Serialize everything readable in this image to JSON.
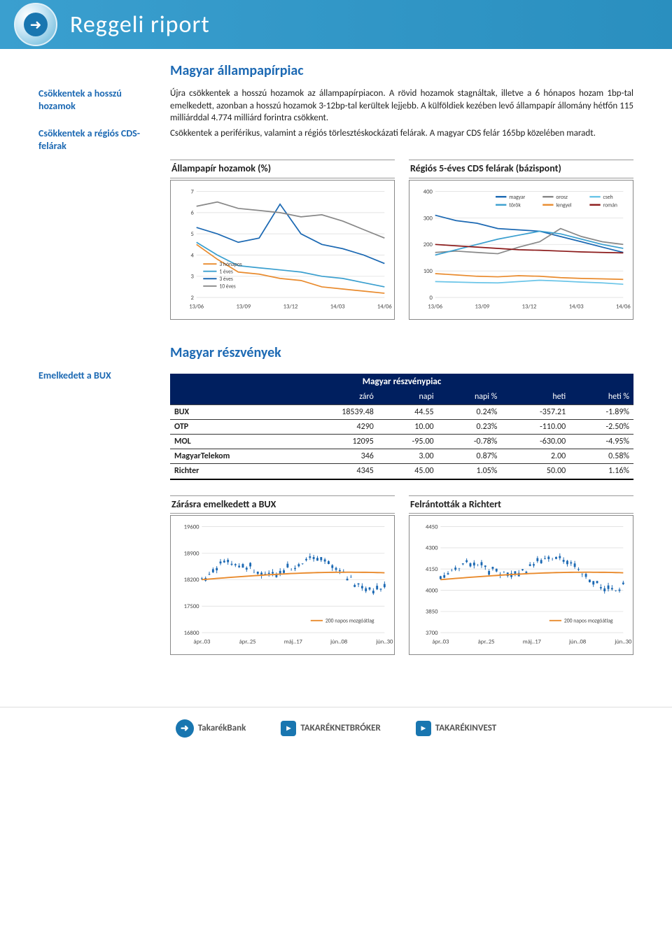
{
  "header": {
    "title": "Reggeli riport"
  },
  "section1": {
    "title": "Magyar állampapírpiac",
    "blocks": [
      {
        "label": "Csökkentek a hosszú hozamok",
        "text": "Újra csökkentek a hosszú hozamok az állampapírpiacon. A rövid hozamok stagnáltak, illetve a 6 hónapos hozam 1bp-tal emelkedett, azonban a hosszú hozamok 3-12bp-tal kerültek lejjebb. A külföldiek kezében levő állampapír állomány hétfőn 115 milliárddal 4.774 milliárd forintra csökkent."
      },
      {
        "label": "Csökkentek a régiós CDS-felárak",
        "text": "Csökkentek a periférikus, valamint a régiós törlesztéskockázati felárak. A magyar CDS felár 165bp közelében maradt."
      }
    ],
    "chart1": {
      "title": "Állampapír hozamok (%)",
      "ylim": [
        2,
        7
      ],
      "yticks": [
        2,
        3,
        4,
        5,
        6,
        7
      ],
      "xlabels": [
        "13/06",
        "13/09",
        "13/12",
        "14/03",
        "14/06"
      ],
      "series": [
        {
          "name": "3 hónapos",
          "color": "#e98b2e",
          "data": [
            4.5,
            3.8,
            3.2,
            3.1,
            2.9,
            2.8,
            2.5,
            2.4,
            2.3,
            2.2
          ]
        },
        {
          "name": "1 éves",
          "color": "#3a9fcf",
          "data": [
            4.6,
            4.0,
            3.5,
            3.4,
            3.3,
            3.2,
            3.0,
            2.9,
            2.7,
            2.5
          ]
        },
        {
          "name": "3 éves",
          "color": "#1c69b3",
          "data": [
            5.3,
            5.0,
            4.6,
            4.8,
            6.4,
            5.0,
            4.5,
            4.3,
            4.0,
            3.6
          ]
        },
        {
          "name": "10 éves",
          "color": "#888888",
          "data": [
            6.3,
            6.5,
            6.2,
            6.1,
            6.0,
            5.8,
            5.9,
            5.6,
            5.2,
            4.8
          ]
        }
      ],
      "grid_color": "#e4e4e4",
      "bg": "#ffffff",
      "axis_fontsize": 9
    },
    "chart2": {
      "title": "Régiós 5-éves CDS felárak (bázispont)",
      "ylim": [
        0,
        400
      ],
      "yticks": [
        0,
        100,
        200,
        300,
        400
      ],
      "xlabels": [
        "13/06",
        "13/09",
        "13/12",
        "14/03",
        "14/06"
      ],
      "legend": [
        {
          "name": "magyar",
          "color": "#1c69b3"
        },
        {
          "name": "orosz",
          "color": "#888888"
        },
        {
          "name": "cseh",
          "color": "#6bc5e8"
        },
        {
          "name": "török",
          "color": "#3a9fcf"
        },
        {
          "name": "lengyel",
          "color": "#e98b2e"
        },
        {
          "name": "román",
          "color": "#8b1a1a"
        }
      ],
      "series": [
        {
          "color": "#1c69b3",
          "data": [
            310,
            290,
            280,
            260,
            255,
            250,
            230,
            210,
            190,
            170
          ]
        },
        {
          "color": "#888888",
          "data": [
            170,
            175,
            170,
            165,
            190,
            210,
            260,
            230,
            210,
            200
          ]
        },
        {
          "color": "#6bc5e8",
          "data": [
            60,
            58,
            56,
            55,
            60,
            65,
            62,
            58,
            55,
            50
          ]
        },
        {
          "color": "#3a9fcf",
          "data": [
            160,
            180,
            200,
            220,
            235,
            250,
            240,
            220,
            200,
            185
          ]
        },
        {
          "color": "#e98b2e",
          "data": [
            90,
            85,
            80,
            78,
            82,
            80,
            75,
            72,
            70,
            68
          ]
        },
        {
          "color": "#8b1a1a",
          "data": [
            200,
            195,
            190,
            185,
            180,
            178,
            175,
            172,
            170,
            168
          ]
        }
      ],
      "grid_color": "#e4e4e4",
      "bg": "#ffffff",
      "axis_fontsize": 9
    }
  },
  "section2": {
    "title": "Magyar részvények",
    "left_label": "Emelkedett a BUX",
    "table": {
      "header": "Magyar részvénypiac",
      "columns": [
        "",
        "záró",
        "napi",
        "napi %",
        "heti",
        "heti %"
      ],
      "rows": [
        [
          "BUX",
          "18539.48",
          "44.55",
          "0.24%",
          "-357.21",
          "-1.89%"
        ],
        [
          "OTP",
          "4290",
          "10.00",
          "0.23%",
          "-110.00",
          "-2.50%"
        ],
        [
          "MOL",
          "12095",
          "-95.00",
          "-0.78%",
          "-630.00",
          "-4.95%"
        ],
        [
          "MagyarTelekom",
          "346",
          "3.00",
          "0.87%",
          "2.00",
          "0.58%"
        ],
        [
          "Richter",
          "4345",
          "45.00",
          "1.05%",
          "50.00",
          "1.16%"
        ]
      ]
    },
    "chart3": {
      "title": "Zárásra emelkedett a BUX",
      "ylim": [
        16800,
        19600
      ],
      "yticks": [
        16800,
        17500,
        18200,
        18900,
        19600
      ],
      "xlabels": [
        "ápr..03",
        "ápr..25",
        "máj..17",
        "jún..08",
        "jún..30"
      ],
      "ma_label": "200 napos mozgóátlag",
      "ma_color": "#e98b2e",
      "candle_color": "#1c69b3",
      "bg": "#ffffff"
    },
    "chart4": {
      "title": "Felrántották a Richtert",
      "ylim": [
        3700,
        4450
      ],
      "yticks": [
        3700,
        3850,
        4000,
        4150,
        4300,
        4450
      ],
      "xlabels": [
        "ápr..03",
        "ápr..25",
        "máj..17",
        "jún..08",
        "jún..30"
      ],
      "ma_label": "200 napos mozgóátlag",
      "ma_color": "#e98b2e",
      "candle_color": "#1c69b3",
      "bg": "#ffffff"
    }
  },
  "footer": {
    "logos": [
      "TakarékBank",
      "TAKARÉKNETBRÓKER",
      "TAKARÉKINVEST"
    ]
  }
}
